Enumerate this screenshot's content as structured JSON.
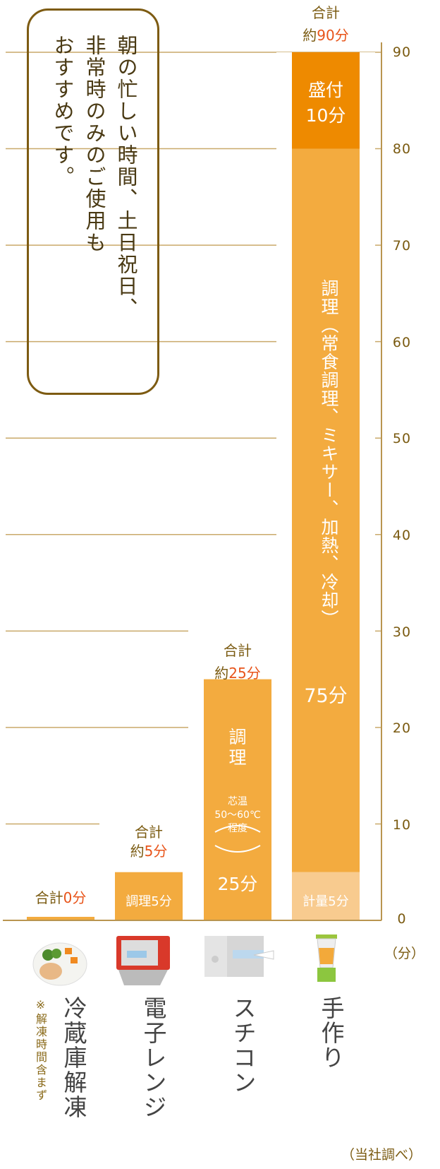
{
  "callout": {
    "lines": [
      "朝の忙しい時間、土日祝日、",
      "非常時のみのご使用も",
      "おすすめです。"
    ]
  },
  "chart_data": {
    "type": "bar",
    "stacked": true,
    "ylim": [
      0,
      90
    ],
    "yticks": [
      "0",
      "10",
      "20",
      "30",
      "40",
      "50",
      "60",
      "70",
      "80",
      "90"
    ],
    "yunit": "（分）",
    "grid": true,
    "source_note": "（当社調べ）",
    "categories": [
      "冷蔵庫解凍",
      "電子レンジ",
      "スチコン",
      "手作り"
    ],
    "category_note": "※解凍時間含まず",
    "totals": [
      {
        "prefix": "合計",
        "value": "0",
        "unit": "分"
      },
      {
        "prefix": "合計",
        "approx": "約",
        "value": "5",
        "unit": "分"
      },
      {
        "prefix": "合計",
        "approx": "約",
        "value": "25",
        "unit": "分"
      },
      {
        "prefix": "合計",
        "approx": "約",
        "value": "90",
        "unit": "分"
      }
    ],
    "series": [
      {
        "category": "冷蔵庫解凍",
        "segments": [
          {
            "label": "",
            "value": 0,
            "color": "#f3ab3f"
          }
        ]
      },
      {
        "category": "電子レンジ",
        "segments": [
          {
            "label": "調理5分",
            "value": 5,
            "color": "#f3ab3f"
          }
        ]
      },
      {
        "category": "スチコン",
        "segments": [
          {
            "label": "調理",
            "note": [
              "芯温",
              "50〜60℃",
              "程度"
            ],
            "time": "25分",
            "value": 25,
            "color": "#f3ab3f"
          }
        ]
      },
      {
        "category": "手作り",
        "segments": [
          {
            "label": "計量5分",
            "value": 5,
            "color": "#f8cb8f"
          },
          {
            "label": "調理（常食調理、ミキサー、加熱、冷却）",
            "time": "75分",
            "value": 75,
            "color": "#f3ab3f"
          },
          {
            "label": "盛付",
            "time": "10分",
            "value": 10,
            "color": "#ee8a00"
          }
        ]
      }
    ]
  },
  "icons": [
    "boxed-meal-icon",
    "microwave-icon",
    "steam-convection-oven-icon",
    "blender-icon"
  ]
}
